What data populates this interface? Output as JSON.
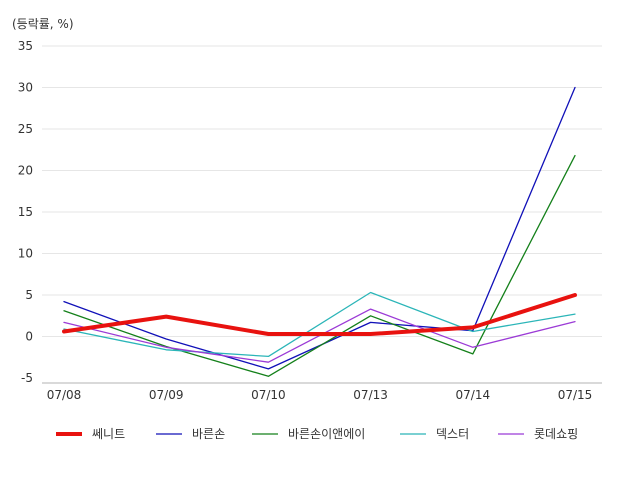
{
  "chart_data": {
    "type": "line",
    "unit_label": "(등락률, %)",
    "categories": [
      "07/08",
      "07/09",
      "07/10",
      "07/13",
      "07/14",
      "07/15"
    ],
    "ylim": [
      -5,
      35
    ],
    "yticks": [
      -5,
      0,
      5,
      10,
      15,
      20,
      25,
      30,
      35
    ],
    "grid": true,
    "legend_position": "bottom",
    "series": [
      {
        "name": "쎄니트",
        "color": "#e8120f",
        "emphasis": true,
        "values": [
          0.6,
          2.4,
          0.3,
          0.3,
          1.1,
          5.0
        ]
      },
      {
        "name": "바른손",
        "color": "#1010b8",
        "values": [
          4.2,
          -0.3,
          -3.9,
          1.7,
          0.7,
          30.0
        ]
      },
      {
        "name": "바른손이앤에이",
        "color": "#14801a",
        "values": [
          3.1,
          -1.2,
          -4.8,
          2.5,
          -2.1,
          21.8
        ]
      },
      {
        "name": "덱스터",
        "color": "#2bb5b8",
        "values": [
          0.9,
          -1.6,
          -2.4,
          5.3,
          0.6,
          2.7
        ]
      },
      {
        "name": "롯데쇼핑",
        "color": "#9b3ad6",
        "values": [
          1.7,
          -1.3,
          -3.1,
          3.3,
          -1.3,
          1.8
        ]
      }
    ]
  }
}
